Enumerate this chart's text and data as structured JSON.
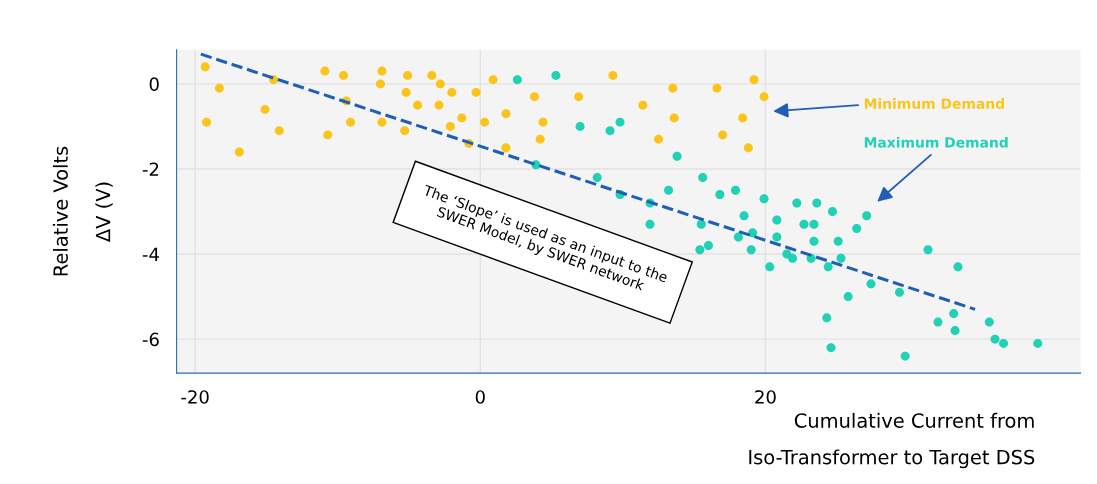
{
  "chart_data": {
    "type": "scatter",
    "xlabel": "Cumulative Current from\nIso-Transformer to Target DSS",
    "ylabel": "Relative Volts\nΔV (V)",
    "xlim": [
      -21.3,
      42.1
    ],
    "ylim": [
      -6.8,
      0.8
    ],
    "xticks": [
      -20,
      0,
      20
    ],
    "yticks": [
      0,
      -2,
      -4,
      -6
    ],
    "grid": true,
    "legend": false,
    "marker": "circle",
    "series": [
      {
        "color": "#fcc419",
        "x": [
          -19.3,
          -18.3,
          -19.2,
          -16.9,
          -15.1,
          -14.1,
          -14.5,
          -10.9,
          -9.6,
          -10.7,
          -9.4,
          -9.1,
          -6.9,
          -7.0,
          -6.9,
          -5.1,
          -5.2,
          -5.3,
          -4.4,
          -3.4,
          -2.9,
          -2.8,
          -2.0,
          -2.1,
          -1.3,
          -0.8,
          -0.3,
          0.3,
          0.9,
          1.8,
          1.8,
          3.8,
          4.4,
          4.2,
          6.9,
          9.3,
          11.4,
          12.5,
          13.5,
          13.6,
          16.6,
          17.0,
          18.4,
          18.8,
          19.2,
          19.9
        ],
        "values": [
          0.4,
          -0.1,
          -0.9,
          -1.6,
          -0.6,
          -1.1,
          0.1,
          0.3,
          0.2,
          -1.2,
          -0.4,
          -0.9,
          0.3,
          0.0,
          -0.9,
          0.2,
          -0.2,
          -1.1,
          -0.5,
          0.2,
          -0.5,
          0.0,
          -0.2,
          -1.0,
          -0.8,
          -1.4,
          -0.2,
          -0.9,
          0.1,
          -0.7,
          -1.5,
          -0.3,
          -0.9,
          -1.3,
          -0.3,
          0.2,
          -0.5,
          -1.3,
          -0.1,
          -0.8,
          -0.1,
          -1.2,
          -0.8,
          -1.5,
          0.1,
          -0.3
        ]
      },
      {
        "color": "#1fd1b5",
        "x": [
          2.6,
          5.3,
          7.0,
          9.1,
          9.8,
          3.9,
          13.8,
          8.2,
          15.6,
          9.8,
          13.2,
          11.9,
          11.9,
          16.8,
          17.9,
          19.9,
          18.5,
          22.2,
          23.6,
          24.7,
          27.1,
          20.8,
          22.7,
          23.4,
          26.4,
          15.5,
          15.4,
          16.0,
          18.1,
          19.1,
          19.0,
          20.8,
          20.3,
          21.5,
          21.9,
          23.2,
          23.4,
          24.4,
          25.1,
          25.3,
          27.4,
          25.8,
          24.3,
          24.6,
          29.4,
          31.4,
          33.5,
          33.2,
          32.1,
          33.3,
          29.8,
          35.7,
          36.1,
          36.7,
          39.1
        ],
        "values": [
          0.1,
          0.2,
          -1.0,
          -1.1,
          -0.9,
          -1.9,
          -1.7,
          -2.2,
          -2.2,
          -2.6,
          -2.5,
          -2.8,
          -3.3,
          -2.6,
          -2.5,
          -2.7,
          -3.1,
          -2.8,
          -2.8,
          -3.0,
          -3.1,
          -3.2,
          -3.3,
          -3.3,
          -3.4,
          -3.3,
          -3.9,
          -3.8,
          -3.6,
          -3.5,
          -3.9,
          -3.6,
          -4.3,
          -4.0,
          -4.1,
          -4.1,
          -3.7,
          -4.3,
          -3.7,
          -4.1,
          -4.7,
          -5.0,
          -5.5,
          -6.2,
          -4.9,
          -3.9,
          -4.3,
          -5.4,
          -5.6,
          -5.8,
          -6.4,
          -5.6,
          -6.0,
          -6.1,
          -6.1
        ]
      },
      {
        "type": "line",
        "color": "#1f5fb5",
        "line_style": "dashed",
        "marker": "none",
        "x": [
          -19.6,
          34.7
        ],
        "values": [
          0.7,
          -5.3
        ]
      }
    ],
    "annotations": [
      "Minimum Demand",
      "Maximum Demand",
      "The ‘Slope’ is used as an input to the\nSWER Model, by SWER network"
    ]
  }
}
